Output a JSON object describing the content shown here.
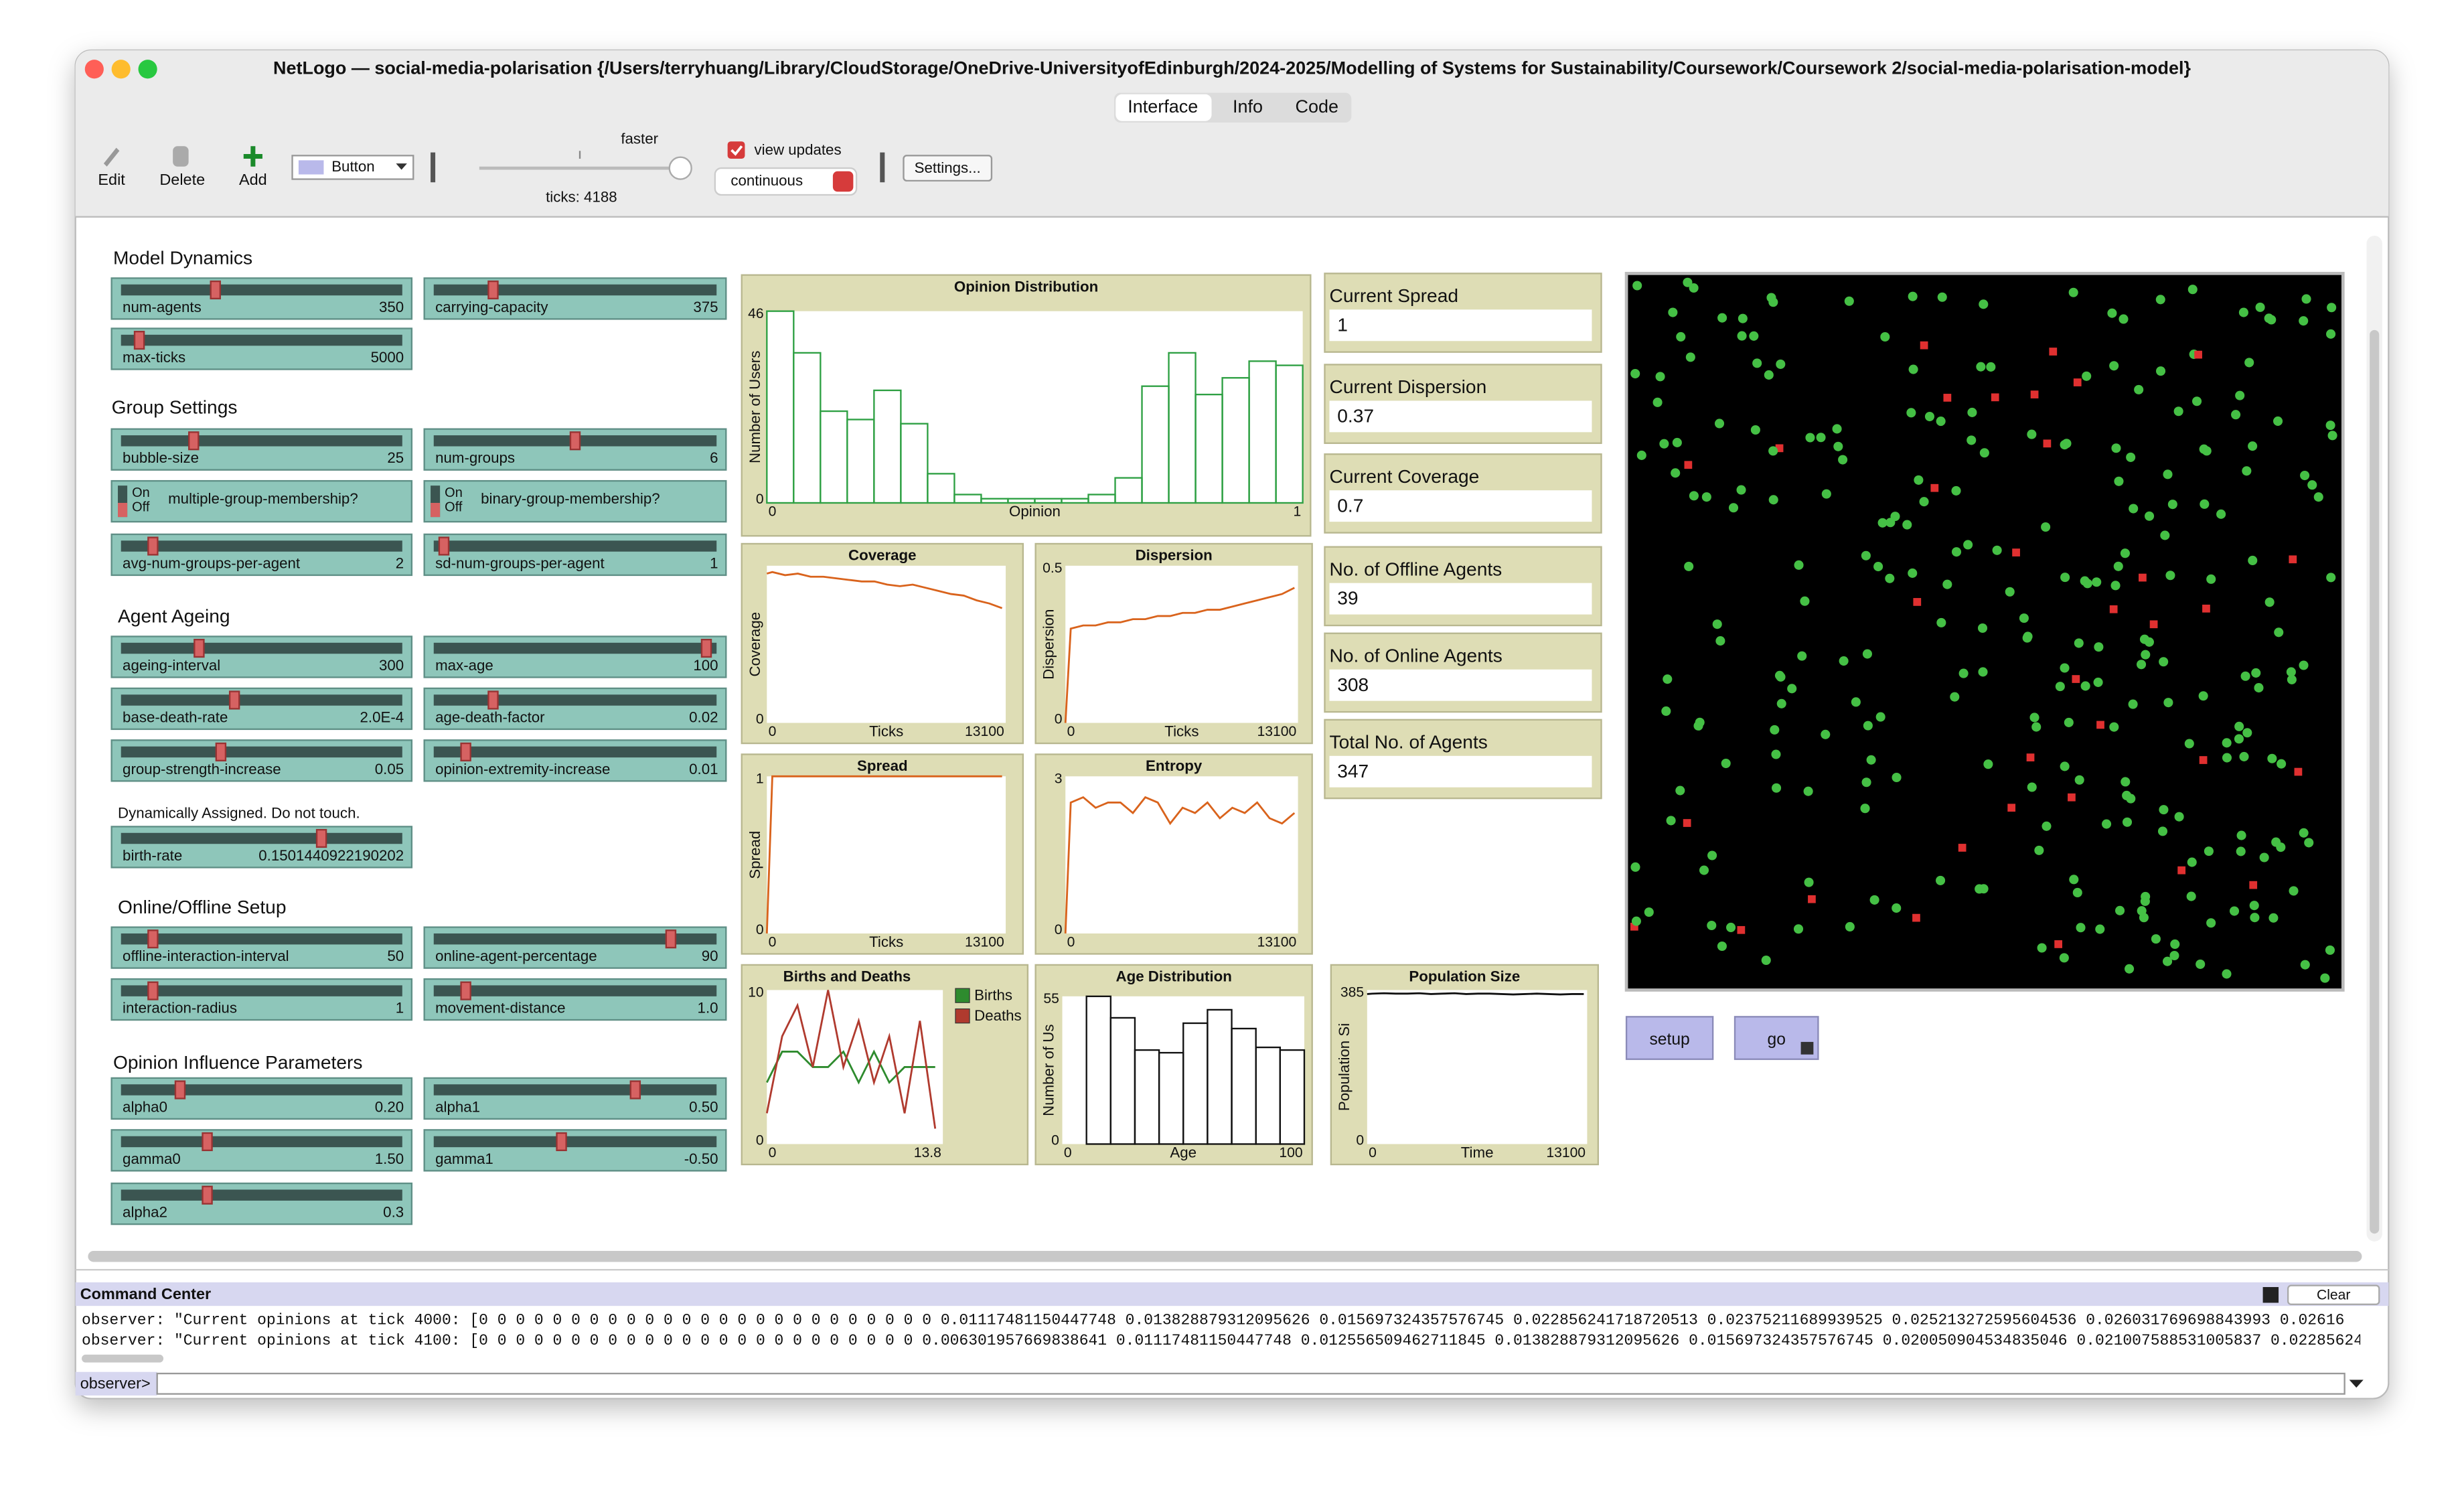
{
  "window": {
    "title": "NetLogo — social-media-polarisation {/Users/terryhuang/Library/CloudStorage/OneDrive-UniversityofEdinburgh/2024-2025/Modelling of Systems for Sustainability/Coursework/Coursework 2/social-media-polarisation-model}"
  },
  "tabs": [
    "Interface",
    "Info",
    "Code"
  ],
  "toolbar": {
    "edit": "Edit",
    "delete": "Delete",
    "add": "Add",
    "widget": "Button",
    "speed": "faster",
    "ticks": "ticks: 4188",
    "view_updates": "view updates",
    "update_mode": "continuous",
    "settings": "Settings..."
  },
  "headings": [
    "Model Dynamics",
    "Group Settings",
    "Agent Ageing",
    "Online/Offline Setup",
    "Opinion Influence Parameters"
  ],
  "note": "Dynamically Assigned. Do not touch.",
  "sliders": [
    {
      "name": "num-agents",
      "value": "350"
    },
    {
      "name": "carrying-capacity",
      "value": "375"
    },
    {
      "name": "max-ticks",
      "value": "5000"
    },
    {
      "name": "bubble-size",
      "value": "25"
    },
    {
      "name": "num-groups",
      "value": "6"
    },
    {
      "name": "avg-num-groups-per-agent",
      "value": "2"
    },
    {
      "name": "sd-num-groups-per-agent",
      "value": "1"
    },
    {
      "name": "ageing-interval",
      "value": "300"
    },
    {
      "name": "max-age",
      "value": "100"
    },
    {
      "name": "base-death-rate",
      "value": "2.0E-4"
    },
    {
      "name": "age-death-factor",
      "value": "0.02"
    },
    {
      "name": "group-strength-increase",
      "value": "0.05"
    },
    {
      "name": "opinion-extremity-increase",
      "value": "0.01"
    },
    {
      "name": "birth-rate",
      "value": "0.1501440922190202"
    },
    {
      "name": "offline-interaction-interval",
      "value": "50"
    },
    {
      "name": "online-agent-percentage",
      "value": "90"
    },
    {
      "name": "interaction-radius",
      "value": "1"
    },
    {
      "name": "movement-distance",
      "value": "1.0"
    },
    {
      "name": "alpha0",
      "value": "0.20"
    },
    {
      "name": "alpha1",
      "value": "0.50"
    },
    {
      "name": "gamma0",
      "value": "1.50"
    },
    {
      "name": "gamma1",
      "value": "-0.50"
    },
    {
      "name": "alpha2",
      "value": "0.3"
    }
  ],
  "switches": [
    {
      "name": "multiple-group-membership?",
      "on": "On",
      "off": "Off"
    },
    {
      "name": "binary-group-membership?",
      "on": "On",
      "off": "Off"
    }
  ],
  "monitors": [
    {
      "label": "Current Spread",
      "value": "1"
    },
    {
      "label": "Current Dispersion",
      "value": "0.37"
    },
    {
      "label": "Current Coverage",
      "value": "0.7"
    },
    {
      "label": "No. of Offline Agents",
      "value": "39"
    },
    {
      "label": "No. of Online Agents",
      "value": "308"
    },
    {
      "label": "Total No. of Agents",
      "value": "347"
    }
  ],
  "plots": [
    {
      "type": "histogram",
      "title": "Opinion Distribution",
      "xlabel": "Opinion",
      "ylabel": "Number of Users",
      "xlim": [
        0,
        1
      ],
      "ylim": [
        0,
        46
      ],
      "xticks": [
        0,
        1
      ],
      "yticks": [
        0,
        46
      ],
      "color": "#2ea043",
      "bins": [
        0,
        0.05,
        0.1,
        0.15,
        0.2,
        0.25,
        0.3,
        0.35,
        0.4,
        0.45,
        0.5,
        0.55,
        0.6,
        0.65,
        0.7,
        0.75,
        0.8,
        0.85,
        0.9,
        0.95,
        1
      ],
      "counts": [
        46,
        36,
        22,
        20,
        27,
        19,
        7,
        2,
        1,
        1,
        1,
        1,
        2,
        6,
        28,
        36,
        26,
        30,
        34,
        33
      ]
    },
    {
      "type": "line",
      "title": "Coverage",
      "xlabel": "Ticks",
      "ylabel": "Coverage",
      "xlim": [
        0,
        13100
      ],
      "ylim": [
        0,
        1
      ],
      "xticks": [
        0,
        13100
      ],
      "yticks": [
        0
      ],
      "series": [
        {
          "color": "#d9631c",
          "x": [
            0,
            300,
            1000,
            1700,
            2400,
            3100,
            3800,
            4500,
            5200,
            5900,
            6600,
            7300,
            8000,
            8700,
            9400,
            10100,
            10800,
            11500,
            12200,
            12900
          ],
          "values": [
            0.95,
            0.96,
            0.94,
            0.95,
            0.93,
            0.93,
            0.92,
            0.91,
            0.9,
            0.9,
            0.88,
            0.87,
            0.88,
            0.86,
            0.84,
            0.82,
            0.81,
            0.78,
            0.76,
            0.73
          ]
        }
      ]
    },
    {
      "type": "line",
      "title": "Dispersion",
      "xlabel": "Ticks",
      "ylabel": "Dispersion",
      "xlim": [
        0,
        13100
      ],
      "ylim": [
        0,
        0.5
      ],
      "xticks": [
        0,
        13100
      ],
      "yticks": [
        0,
        0.5
      ],
      "series": [
        {
          "color": "#d9631c",
          "x": [
            0,
            300,
            1000,
            1700,
            2400,
            3100,
            3800,
            4500,
            5200,
            5900,
            6600,
            7300,
            8000,
            8700,
            9400,
            10100,
            10800,
            11500,
            12200,
            12900
          ],
          "values": [
            0,
            0.3,
            0.31,
            0.31,
            0.32,
            0.32,
            0.33,
            0.33,
            0.34,
            0.34,
            0.35,
            0.35,
            0.36,
            0.36,
            0.37,
            0.38,
            0.39,
            0.4,
            0.41,
            0.43
          ]
        }
      ]
    },
    {
      "type": "line",
      "title": "Spread",
      "xlabel": "Ticks",
      "ylabel": "Spread",
      "xlim": [
        0,
        13100
      ],
      "ylim": [
        0,
        1
      ],
      "xticks": [
        0,
        13100
      ],
      "yticks": [
        0,
        1
      ],
      "series": [
        {
          "color": "#d9631c",
          "x": [
            0,
            300,
            12900
          ],
          "values": [
            0,
            1,
            1
          ]
        }
      ]
    },
    {
      "type": "line",
      "title": "Entropy",
      "xlim": [
        0,
        13100
      ],
      "ylim": [
        0,
        3
      ],
      "xticks": [
        0,
        13100
      ],
      "yticks": [
        0,
        3
      ],
      "series": [
        {
          "color": "#d9631c",
          "x": [
            0,
            300,
            1000,
            1700,
            2400,
            3100,
            3800,
            4500,
            5200,
            5900,
            6600,
            7300,
            8000,
            8700,
            9400,
            10100,
            10800,
            11500,
            12200,
            12900
          ],
          "values": [
            0,
            2.5,
            2.6,
            2.4,
            2.5,
            2.5,
            2.3,
            2.6,
            2.5,
            2.1,
            2.4,
            2.3,
            2.5,
            2.2,
            2.4,
            2.3,
            2.5,
            2.2,
            2.1,
            2.3
          ]
        }
      ]
    },
    {
      "type": "line",
      "title": "Births and Deaths",
      "xlim": [
        0,
        13.8
      ],
      "ylim": [
        0,
        10
      ],
      "xticks": [
        0,
        13.8
      ],
      "yticks": [
        0,
        10
      ],
      "legend": true,
      "series": [
        {
          "name": "Births",
          "color": "#2e8b2e",
          "x": [
            0,
            1.2,
            2.4,
            3.6,
            4.8,
            6,
            7.2,
            8.4,
            9.6,
            10.8,
            12,
            13.2
          ],
          "values": [
            4,
            6,
            6,
            5,
            5,
            6,
            4,
            6,
            4,
            5,
            5,
            5
          ]
        },
        {
          "name": "Deaths",
          "color": "#b03a2e",
          "x": [
            0,
            1.2,
            2.4,
            3.6,
            4.8,
            6,
            7.2,
            8.4,
            9.6,
            10.8,
            12,
            13.2
          ],
          "values": [
            2,
            7,
            9,
            5,
            10,
            5,
            8,
            4,
            7,
            2,
            8,
            1
          ]
        }
      ]
    },
    {
      "type": "histogram",
      "title": "Age Distribution",
      "xlabel": "Age",
      "ylabel": "Number of Us",
      "xlim": [
        0,
        100
      ],
      "ylim": [
        0,
        55
      ],
      "xticks": [
        0,
        100
      ],
      "yticks": [
        0,
        55
      ],
      "color": "#111111",
      "bins": [
        10,
        20,
        30,
        40,
        50,
        60,
        70,
        80,
        90,
        100
      ],
      "counts": [
        55,
        47,
        35,
        34,
        45,
        50,
        43,
        36,
        35
      ]
    },
    {
      "type": "line",
      "title": "Population Size",
      "xlabel": "Time",
      "ylabel": "Population Si",
      "xlim": [
        0,
        13100
      ],
      "ylim": [
        0,
        385
      ],
      "xticks": [
        0,
        13100
      ],
      "yticks": [
        0,
        385
      ],
      "series": [
        {
          "color": "#111111",
          "x": [
            0,
            300,
            1000,
            1700,
            2400,
            3100,
            3800,
            4500,
            5200,
            5900,
            6600,
            7300,
            8000,
            8700,
            9400,
            10100,
            10800,
            11500,
            12200,
            12900
          ],
          "values": [
            375,
            376,
            377,
            376,
            376,
            377,
            375,
            376,
            377,
            375,
            376,
            376,
            375,
            374,
            375,
            376,
            375,
            374,
            375,
            375
          ]
        }
      ]
    }
  ],
  "buttons": [
    "setup",
    "go"
  ],
  "command_center": {
    "title": "Command Center",
    "clear": "Clear",
    "prompt": "observer>",
    "output": [
      "observer: \"Current opinions at tick 4000: [0 0 0 0 0 0 0 0 0 0 0 0 0 0 0 0 0 0 0 0 0 0 0 0 0 0.01117481150447748 0.013828879312095626 0.015697324357576745 0.022856241718720513 0.02375211689939525 0.025213272595604536 0.026031769698843993 0.02616",
      "observer: \"Current opinions at tick 4100: [0 0 0 0 0 0 0 0 0 0 0 0 0 0 0 0 0 0 0 0 0 0 0 0 0.006301957669838641 0.01117481150447748 0.012556509462711845 0.013828879312095626 0.015697324357576745 0.020050904534835046 0.021007588531005837 0.02285624"
    ]
  }
}
